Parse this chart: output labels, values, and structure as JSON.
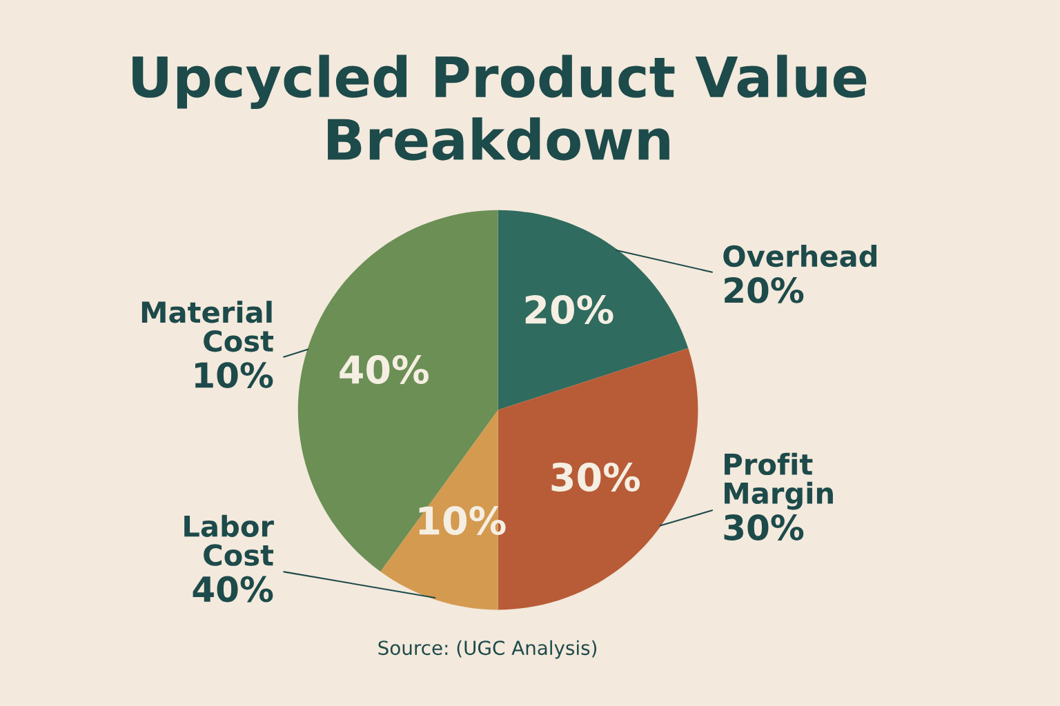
{
  "chart_data": {
    "type": "pie",
    "title": "Upcycled Product Value Breakdown",
    "categories": [
      "Overhead",
      "Profit Margin",
      "Labor Cost",
      "Material Cost"
    ],
    "values": [
      20,
      30,
      10,
      40
    ],
    "colors": [
      "#2f6b5e",
      "#b85c38",
      "#d49a50",
      "#6b8f55"
    ],
    "value_labels": [
      "20%",
      "30%",
      "10%",
      "40%"
    ],
    "annotations": [
      "20%",
      "30%",
      "40%",
      "10%",
      "Source: (UGC Analysis)"
    ]
  }
}
